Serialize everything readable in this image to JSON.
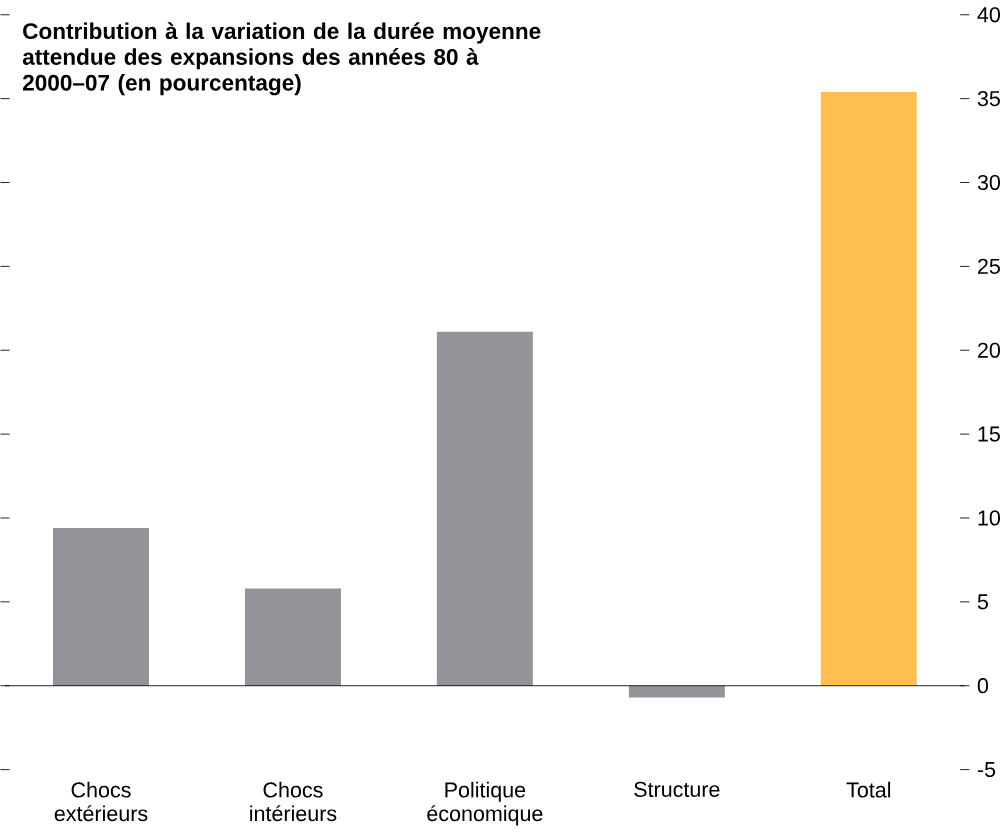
{
  "chart_data": {
    "type": "bar",
    "title": "Contribution à la variation de la durée moyenne attendue des expansions des années 80 à 2000–07 (en pourcentage)",
    "categories": [
      "Chocs extérieurs",
      "Chocs intérieurs",
      "Politique économique",
      "Structure",
      "Total"
    ],
    "values": [
      9.4,
      5.8,
      21.1,
      -0.7,
      35.4
    ],
    "colors": [
      "#939399",
      "#939399",
      "#939399",
      "#939399",
      "#fdbf4f"
    ],
    "ylim": [
      -5,
      40
    ],
    "yticks": [
      -5,
      0,
      5,
      10,
      15,
      20,
      25,
      30,
      35,
      40
    ]
  }
}
